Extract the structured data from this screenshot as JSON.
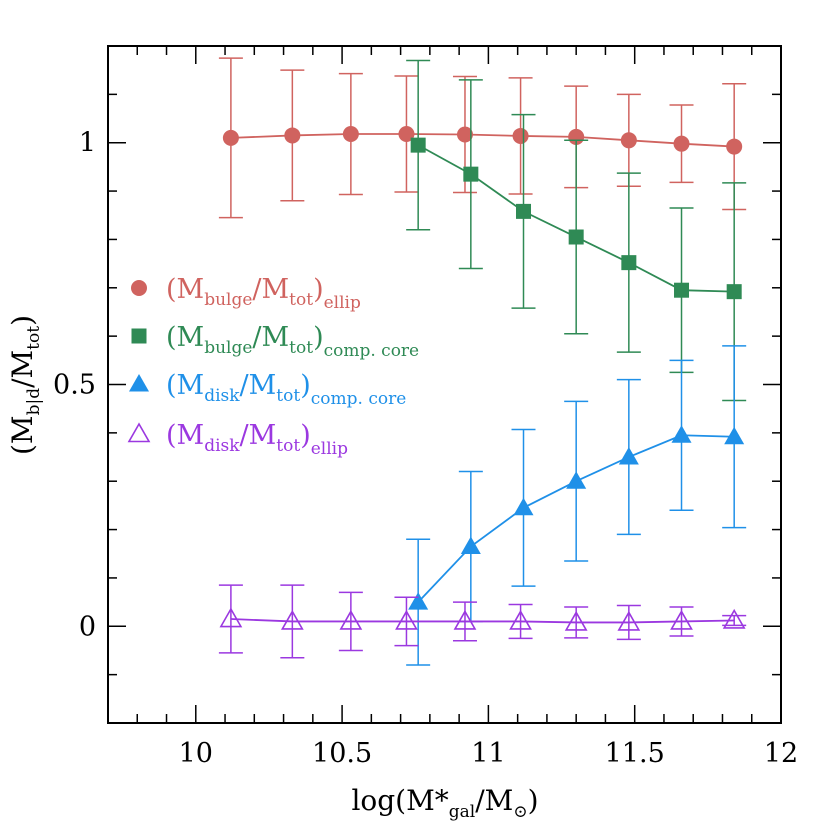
{
  "chart_data": {
    "type": "line",
    "xlabel": {
      "pre": "log(M*",
      "sub": "gal",
      "mid": "/M",
      "sub2": "⊙",
      "post": ")"
    },
    "ylabel": {
      "pre": "(M",
      "sub": "b|d",
      "mid": "/M",
      "sub2": "tot",
      "post": ")"
    },
    "xlim": [
      9.7,
      12.0
    ],
    "ylim": [
      -0.2,
      1.2
    ],
    "xticks": [
      "10",
      "10.5",
      "11",
      "11.5",
      "12"
    ],
    "xtick_values": [
      10,
      10.5,
      11,
      11.5,
      12
    ],
    "yticks": [
      "0",
      "0.5",
      "1"
    ],
    "ytick_values": [
      0,
      0.5,
      1
    ],
    "grid": false,
    "legend_position": "left-center",
    "series": [
      {
        "key": "bulge_ellip",
        "label": {
          "pre": "(M",
          "sub": "bulge",
          "mid": "/M",
          "sub2": "tot",
          "post": ")",
          "sub3": "ellip"
        },
        "color": "#d0635f",
        "marker": "circle-filled",
        "x": [
          10.12,
          10.33,
          10.53,
          10.72,
          10.92,
          11.11,
          11.3,
          11.48,
          11.66,
          11.84
        ],
        "y": [
          1.01,
          1.015,
          1.018,
          1.018,
          1.017,
          1.014,
          1.012,
          1.005,
          0.998,
          0.992
        ],
        "err": [
          0.165,
          0.135,
          0.125,
          0.12,
          0.12,
          0.12,
          0.105,
          0.095,
          0.08,
          0.13
        ]
      },
      {
        "key": "bulge_core",
        "label": {
          "pre": "(M",
          "sub": "bulge",
          "mid": "/M",
          "sub2": "tot",
          "post": ")",
          "sub3": "comp. core"
        },
        "color": "#2f8a55",
        "marker": "square-filled",
        "x": [
          10.76,
          10.94,
          11.12,
          11.3,
          11.48,
          11.66,
          11.84
        ],
        "y": [
          0.995,
          0.935,
          0.858,
          0.805,
          0.752,
          0.695,
          0.692
        ],
        "err": [
          0.175,
          0.195,
          0.2,
          0.2,
          0.185,
          0.17,
          0.225
        ]
      },
      {
        "key": "disk_core",
        "label": {
          "pre": "(M",
          "sub": "disk",
          "mid": "/M",
          "sub2": "tot",
          "post": ")",
          "sub3": "comp. core"
        },
        "color": "#1f90e8",
        "marker": "triangle-filled",
        "x": [
          10.76,
          10.94,
          11.12,
          11.3,
          11.48,
          11.66,
          11.84
        ],
        "y": [
          0.05,
          0.165,
          0.245,
          0.3,
          0.35,
          0.395,
          0.392
        ],
        "err": [
          0.13,
          0.155,
          0.162,
          0.165,
          0.16,
          0.155,
          0.188
        ]
      },
      {
        "key": "disk_ellip",
        "label": {
          "pre": "(M",
          "sub": "disk",
          "mid": "/M",
          "sub2": "tot",
          "post": ")",
          "sub3": "ellip"
        },
        "color": "#9b38e0",
        "marker": "triangle-open",
        "x": [
          10.12,
          10.33,
          10.53,
          10.72,
          10.92,
          11.11,
          11.3,
          11.48,
          11.66,
          11.84
        ],
        "y": [
          0.015,
          0.01,
          0.01,
          0.01,
          0.01,
          0.01,
          0.008,
          0.008,
          0.01,
          0.012
        ],
        "err": [
          0.07,
          0.075,
          0.06,
          0.05,
          0.04,
          0.035,
          0.032,
          0.035,
          0.03,
          0.01
        ]
      }
    ]
  }
}
